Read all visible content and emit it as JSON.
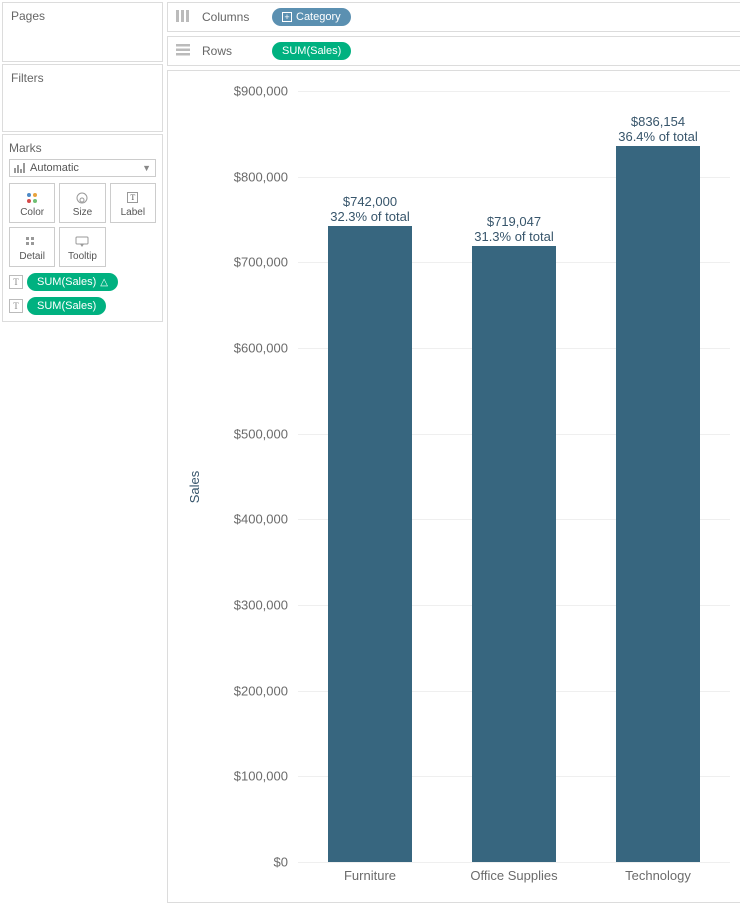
{
  "panels": {
    "pages": "Pages",
    "filters": "Filters",
    "marks": "Marks",
    "marks_select": "Automatic",
    "mark_buttons": {
      "color": "Color",
      "size": "Size",
      "label": "Label",
      "detail": "Detail",
      "tooltip": "Tooltip"
    },
    "mark_pills": [
      {
        "label": "SUM(Sales)",
        "delta": true
      },
      {
        "label": "SUM(Sales)",
        "delta": false
      }
    ]
  },
  "shelves": {
    "columns_label": "Columns",
    "rows_label": "Rows",
    "columns_pill": "Category",
    "rows_pill": "SUM(Sales)"
  },
  "chart": {
    "type": "bar",
    "y_label": "Sales",
    "y_min": 0,
    "y_max": 900000,
    "y_ticks": [
      {
        "v": 0,
        "label": "$0"
      },
      {
        "v": 100000,
        "label": "$100,000"
      },
      {
        "v": 200000,
        "label": "$200,000"
      },
      {
        "v": 300000,
        "label": "$300,000"
      },
      {
        "v": 400000,
        "label": "$400,000"
      },
      {
        "v": 500000,
        "label": "$500,000"
      },
      {
        "v": 600000,
        "label": "$600,000"
      },
      {
        "v": 700000,
        "label": "$700,000"
      },
      {
        "v": 800000,
        "label": "$800,000"
      },
      {
        "v": 900000,
        "label": "$900,000"
      }
    ],
    "bar_color": "#37667f",
    "grid_color": "#efefef",
    "label_color": "#37556b",
    "bars": [
      {
        "category": "Furniture",
        "value": 742000,
        "value_label": "$742,000",
        "pct_label": "32.3% of total"
      },
      {
        "category": "Office Supplies",
        "value": 719047,
        "value_label": "$719,047",
        "pct_label": "31.3% of total"
      },
      {
        "category": "Technology",
        "value": 836154,
        "value_label": "$836,154",
        "pct_label": "36.4% of total"
      }
    ]
  }
}
